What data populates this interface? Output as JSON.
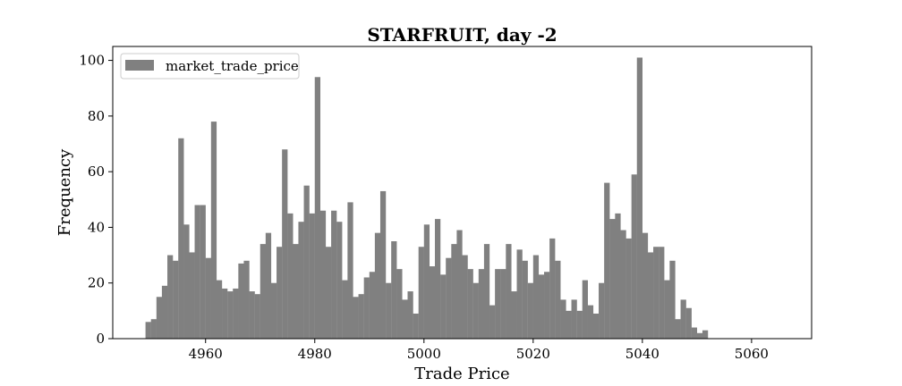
{
  "chart_data": {
    "type": "bar",
    "title": "STARFRUIT, day -2",
    "xlabel": "Trade Price",
    "ylabel": "Frequency",
    "xlim": [
      4943,
      5071
    ],
    "ylim": [
      0,
      105
    ],
    "x_ticks": [
      4960,
      4980,
      5000,
      5020,
      5040,
      5060
    ],
    "y_ticks": [
      0,
      20,
      40,
      60,
      80,
      100
    ],
    "bin_start": 4949,
    "bin_width": 1,
    "grid": false,
    "legend_position": "top-left",
    "series": [
      {
        "name": "market_trade_price",
        "color": "#808080",
        "values": [
          6,
          7,
          15,
          19,
          30,
          28,
          72,
          41,
          31,
          48,
          48,
          29,
          78,
          21,
          18,
          17,
          18,
          27,
          28,
          17,
          16,
          34,
          38,
          20,
          33,
          68,
          45,
          34,
          42,
          55,
          45,
          94,
          46,
          33,
          46,
          42,
          21,
          49,
          15,
          16,
          22,
          24,
          38,
          53,
          20,
          35,
          25,
          14,
          17,
          9,
          33,
          41,
          26,
          43,
          23,
          29,
          34,
          39,
          30,
          25,
          20,
          25,
          34,
          12,
          25,
          25,
          34,
          17,
          32,
          28,
          20,
          30,
          23,
          24,
          36,
          28,
          14,
          10,
          14,
          10,
          21,
          12,
          9,
          20,
          56,
          43,
          45,
          39,
          36,
          59,
          101,
          38,
          31,
          33,
          33,
          21,
          28,
          7,
          14,
          11,
          4,
          2,
          3
        ]
      }
    ]
  }
}
